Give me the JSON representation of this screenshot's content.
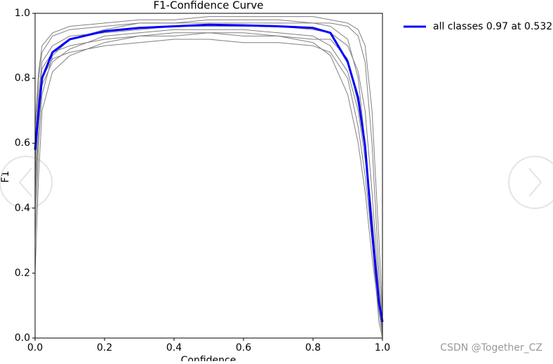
{
  "chart_data": {
    "type": "line",
    "title": "F1-Confidence Curve",
    "xlabel": "Confidence",
    "ylabel": "F1",
    "x": [
      0,
      0.01,
      0.02,
      0.05,
      0.1,
      0.2,
      0.3,
      0.4,
      0.5,
      0.6,
      0.7,
      0.8,
      0.85,
      0.9,
      0.93,
      0.95,
      0.97,
      0.99,
      1.0
    ],
    "series": [
      {
        "color": "#808080",
        "values": [
          0.3,
          0.6,
          0.75,
          0.87,
          0.92,
          0.95,
          0.97,
          0.97,
          0.98,
          0.98,
          0.98,
          0.97,
          0.96,
          0.92,
          0.8,
          0.6,
          0.3,
          0.05,
          0.0
        ]
      },
      {
        "color": "#808080",
        "values": [
          0.5,
          0.7,
          0.8,
          0.86,
          0.88,
          0.9,
          0.91,
          0.92,
          0.92,
          0.91,
          0.91,
          0.9,
          0.88,
          0.8,
          0.65,
          0.5,
          0.3,
          0.1,
          0.02
        ]
      },
      {
        "color": "#808080",
        "values": [
          0.6,
          0.8,
          0.88,
          0.93,
          0.95,
          0.96,
          0.97,
          0.97,
          0.97,
          0.97,
          0.97,
          0.97,
          0.97,
          0.96,
          0.93,
          0.85,
          0.6,
          0.2,
          0.05
        ]
      },
      {
        "color": "#808080",
        "values": [
          0.4,
          0.65,
          0.78,
          0.85,
          0.89,
          0.93,
          0.94,
          0.95,
          0.95,
          0.95,
          0.94,
          0.93,
          0.9,
          0.82,
          0.7,
          0.55,
          0.35,
          0.1,
          0.03
        ]
      },
      {
        "color": "#808080",
        "values": [
          0.55,
          0.75,
          0.85,
          0.9,
          0.93,
          0.94,
          0.95,
          0.96,
          0.96,
          0.96,
          0.96,
          0.95,
          0.94,
          0.9,
          0.82,
          0.7,
          0.45,
          0.15,
          0.04
        ]
      },
      {
        "color": "#808080",
        "values": [
          0.2,
          0.5,
          0.7,
          0.82,
          0.87,
          0.91,
          0.93,
          0.93,
          0.94,
          0.94,
          0.93,
          0.91,
          0.87,
          0.75,
          0.6,
          0.45,
          0.25,
          0.08,
          0.01
        ]
      },
      {
        "color": "#808080",
        "values": [
          0.65,
          0.82,
          0.9,
          0.94,
          0.96,
          0.97,
          0.98,
          0.98,
          0.99,
          0.99,
          0.99,
          0.99,
          0.98,
          0.97,
          0.95,
          0.9,
          0.7,
          0.3,
          0.08
        ]
      },
      {
        "color": "#808080",
        "values": [
          0.45,
          0.72,
          0.83,
          0.88,
          0.9,
          0.92,
          0.93,
          0.94,
          0.94,
          0.93,
          0.93,
          0.92,
          0.92,
          0.86,
          0.72,
          0.58,
          0.38,
          0.12,
          0.03
        ]
      },
      {
        "name": "all classes 0.97 at 0.532",
        "color": "#0000ff",
        "values": [
          0.58,
          0.7,
          0.8,
          0.88,
          0.92,
          0.945,
          0.955,
          0.96,
          0.965,
          0.963,
          0.96,
          0.955,
          0.94,
          0.85,
          0.74,
          0.59,
          0.33,
          0.11,
          0.05
        ]
      }
    ],
    "xlim": [
      0,
      1
    ],
    "ylim": [
      0,
      1
    ],
    "xticks": [
      {
        "value": 0,
        "label": "0.0"
      },
      0.2,
      0.4,
      0.6,
      0.8,
      {
        "value": 1,
        "label": "1.0"
      }
    ],
    "yticks": [
      {
        "value": 0,
        "label": "0.0"
      },
      0.2,
      0.4,
      0.6,
      0.8,
      {
        "value": 1,
        "label": "1.0"
      }
    ],
    "legend": "upper right outside"
  },
  "watermark": "CSDN @Together_CZ"
}
